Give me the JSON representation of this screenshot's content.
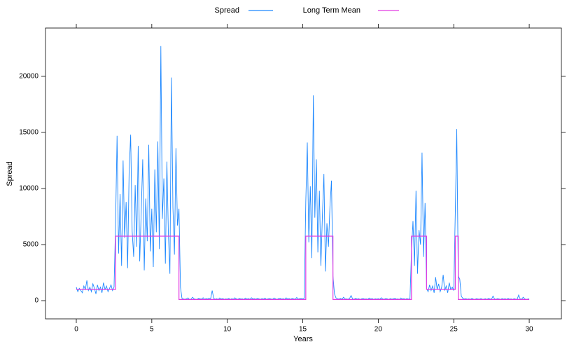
{
  "chart_data": {
    "type": "line",
    "xlabel": "Years",
    "ylabel": "Spread",
    "xlim": [
      -2.04,
      32.13
    ],
    "ylim": [
      -1625,
      24310
    ],
    "xticks": [
      0,
      5,
      10,
      15,
      20,
      25,
      30
    ],
    "yticks": [
      0,
      5000,
      10000,
      15000,
      20000
    ],
    "series": [
      {
        "name": "Spread",
        "color": "#1e88ff",
        "x": [
          0,
          0.1,
          0.2,
          0.3,
          0.4,
          0.5,
          0.6,
          0.7,
          0.8,
          0.9,
          1,
          1.1,
          1.2,
          1.3,
          1.4,
          1.5,
          1.6,
          1.7,
          1.8,
          1.9,
          2,
          2.1,
          2.2,
          2.3,
          2.4,
          2.5,
          2.6,
          2.7,
          2.8,
          2.9,
          3,
          3.1,
          3.2,
          3.3,
          3.4,
          3.5,
          3.6,
          3.7,
          3.8,
          3.9,
          4,
          4.1,
          4.2,
          4.3,
          4.4,
          4.5,
          4.6,
          4.7,
          4.8,
          4.9,
          5,
          5.1,
          5.2,
          5.3,
          5.4,
          5.5,
          5.6,
          5.7,
          5.8,
          5.9,
          6,
          6.1,
          6.2,
          6.3,
          6.4,
          6.5,
          6.6,
          6.7,
          6.8,
          6.9,
          7,
          7.1,
          7.2,
          7.3,
          7.4,
          7.5,
          7.6,
          7.7,
          7.8,
          7.9,
          8,
          8.1,
          8.2,
          8.3,
          8.4,
          8.5,
          8.6,
          8.7,
          8.8,
          8.9,
          9,
          9.1,
          9.2,
          9.3,
          9.4,
          9.5,
          9.6,
          9.7,
          9.8,
          9.9,
          10,
          10.1,
          10.2,
          10.3,
          10.4,
          10.5,
          10.6,
          10.7,
          10.8,
          10.9,
          11,
          11.1,
          11.2,
          11.3,
          11.4,
          11.5,
          11.6,
          11.7,
          11.8,
          11.9,
          12,
          12.1,
          12.2,
          12.3,
          12.4,
          12.5,
          12.6,
          12.7,
          12.8,
          12.9,
          13,
          13.1,
          13.2,
          13.3,
          13.4,
          13.5,
          13.6,
          13.7,
          13.8,
          13.9,
          14,
          14.1,
          14.2,
          14.3,
          14.4,
          14.5,
          14.6,
          14.7,
          14.8,
          14.9,
          15,
          15.1,
          15.2,
          15.3,
          15.4,
          15.5,
          15.6,
          15.7,
          15.8,
          15.9,
          16,
          16.1,
          16.2,
          16.3,
          16.4,
          16.5,
          16.6,
          16.7,
          16.8,
          16.9,
          17,
          17.1,
          17.2,
          17.3,
          17.4,
          17.5,
          17.6,
          17.7,
          17.8,
          17.9,
          18,
          18.1,
          18.2,
          18.3,
          18.4,
          18.5,
          18.6,
          18.7,
          18.8,
          18.9,
          19,
          19.1,
          19.2,
          19.3,
          19.4,
          19.5,
          19.6,
          19.7,
          19.8,
          19.9,
          20,
          20.1,
          20.2,
          20.3,
          20.4,
          20.5,
          20.6,
          20.7,
          20.8,
          20.9,
          21,
          21.1,
          21.2,
          21.3,
          21.4,
          21.5,
          21.6,
          21.7,
          21.8,
          21.9,
          22,
          22.1,
          22.2,
          22.3,
          22.4,
          22.5,
          22.6,
          22.7,
          22.8,
          22.9,
          23,
          23.1,
          23.2,
          23.3,
          23.4,
          23.5,
          23.6,
          23.7,
          23.8,
          23.9,
          24,
          24.1,
          24.2,
          24.3,
          24.4,
          24.5,
          24.6,
          24.7,
          24.8,
          24.9,
          25,
          25.1,
          25.2,
          25.3,
          25.4,
          25.5,
          25.6,
          25.7,
          25.8,
          25.9,
          26,
          26.1,
          26.2,
          26.3,
          26.4,
          26.5,
          26.6,
          26.7,
          26.8,
          26.9,
          27,
          27.1,
          27.2,
          27.3,
          27.4,
          27.5,
          27.6,
          27.7,
          27.8,
          27.9,
          28,
          28.1,
          28.2,
          28.3,
          28.4,
          28.5,
          28.6,
          28.7,
          28.8,
          28.9,
          29,
          29.1,
          29.2,
          29.3,
          29.4,
          29.5,
          29.6,
          29.7,
          29.8,
          29.9,
          30
        ],
        "values": [
          1200,
          800,
          1100,
          900,
          700,
          1300,
          1000,
          1800,
          900,
          1200,
          800,
          1500,
          1100,
          600,
          1400,
          900,
          1200,
          700,
          1600,
          1000,
          1300,
          800,
          1100,
          1400,
          900,
          1200,
          6800,
          14700,
          4200,
          9500,
          3100,
          12500,
          5600,
          8800,
          2900,
          11600,
          14800,
          6200,
          3900,
          10300,
          4800,
          13800,
          3500,
          7900,
          12600,
          2700,
          9100,
          5300,
          13900,
          4400,
          8200,
          3000,
          11700,
          6100,
          14200,
          4600,
          22700,
          7300,
          10900,
          3300,
          12400,
          5900,
          2400,
          19900,
          8300,
          4100,
          13600,
          6700,
          8200,
          1200,
          200,
          150,
          120,
          180,
          250,
          100,
          140,
          300,
          160,
          130,
          110,
          220,
          170,
          140,
          260,
          120,
          190,
          150,
          230,
          180,
          900,
          200,
          130,
          170,
          110,
          240,
          150,
          190,
          120,
          160,
          140,
          210,
          110,
          180,
          130,
          250,
          160,
          120,
          200,
          150,
          170,
          110,
          230,
          140,
          190,
          120,
          260,
          150,
          180,
          130,
          210,
          160,
          120,
          190,
          140,
          230,
          110,
          170,
          200,
          150,
          130,
          240,
          160,
          110,
          190,
          220,
          140,
          170,
          120,
          250,
          150,
          190,
          120,
          210,
          160,
          130,
          280,
          140,
          180,
          200,
          170,
          220,
          8800,
          14100,
          5200,
          10200,
          3800,
          18300,
          7400,
          12600,
          4300,
          9800,
          3100,
          7600,
          11300,
          2600,
          6900,
          4800,
          8400,
          10700,
          2200,
          600,
          250,
          180,
          140,
          210,
          120,
          300,
          170,
          150,
          130,
          190,
          450,
          160,
          120,
          220,
          140,
          180,
          110,
          170,
          200,
          140,
          160,
          120,
          230,
          150,
          190,
          110,
          170,
          140,
          180,
          120,
          260,
          150,
          130,
          200,
          160,
          110,
          190,
          140,
          170,
          220,
          130,
          160,
          110,
          240,
          150,
          180,
          120,
          190,
          140,
          160,
          4400,
          7100,
          3100,
          9800,
          2400,
          6300,
          5000,
          13200,
          3900,
          8700,
          1100,
          800,
          1400,
          900,
          1300,
          700,
          2100,
          1000,
          1500,
          800,
          1200,
          2300,
          900,
          1300,
          700,
          1600,
          1000,
          1200,
          900,
          7700,
          15300,
          2200,
          1900,
          400,
          200,
          150,
          180,
          130,
          160,
          120,
          200,
          140,
          110,
          180,
          150,
          130,
          190,
          120,
          140,
          170,
          110,
          200,
          150,
          130,
          400,
          160,
          120,
          180,
          150,
          110,
          190,
          140,
          170,
          120,
          200,
          130,
          160,
          110,
          180,
          140,
          120,
          500,
          150,
          130,
          300,
          160,
          110,
          140,
          170
        ]
      },
      {
        "name": "Long Term Mean",
        "color": "#e23be2",
        "x": [
          0,
          2.6,
          2.6,
          6.8,
          6.8,
          15.2,
          15.2,
          17,
          17,
          22.2,
          22.2,
          23.2,
          23.2,
          25.1,
          25.1,
          25.3,
          25.3,
          30
        ],
        "values": [
          1000,
          1000,
          5750,
          5750,
          100,
          100,
          5750,
          5750,
          100,
          100,
          5750,
          5750,
          1000,
          1000,
          5750,
          5750,
          100,
          100
        ]
      }
    ]
  }
}
